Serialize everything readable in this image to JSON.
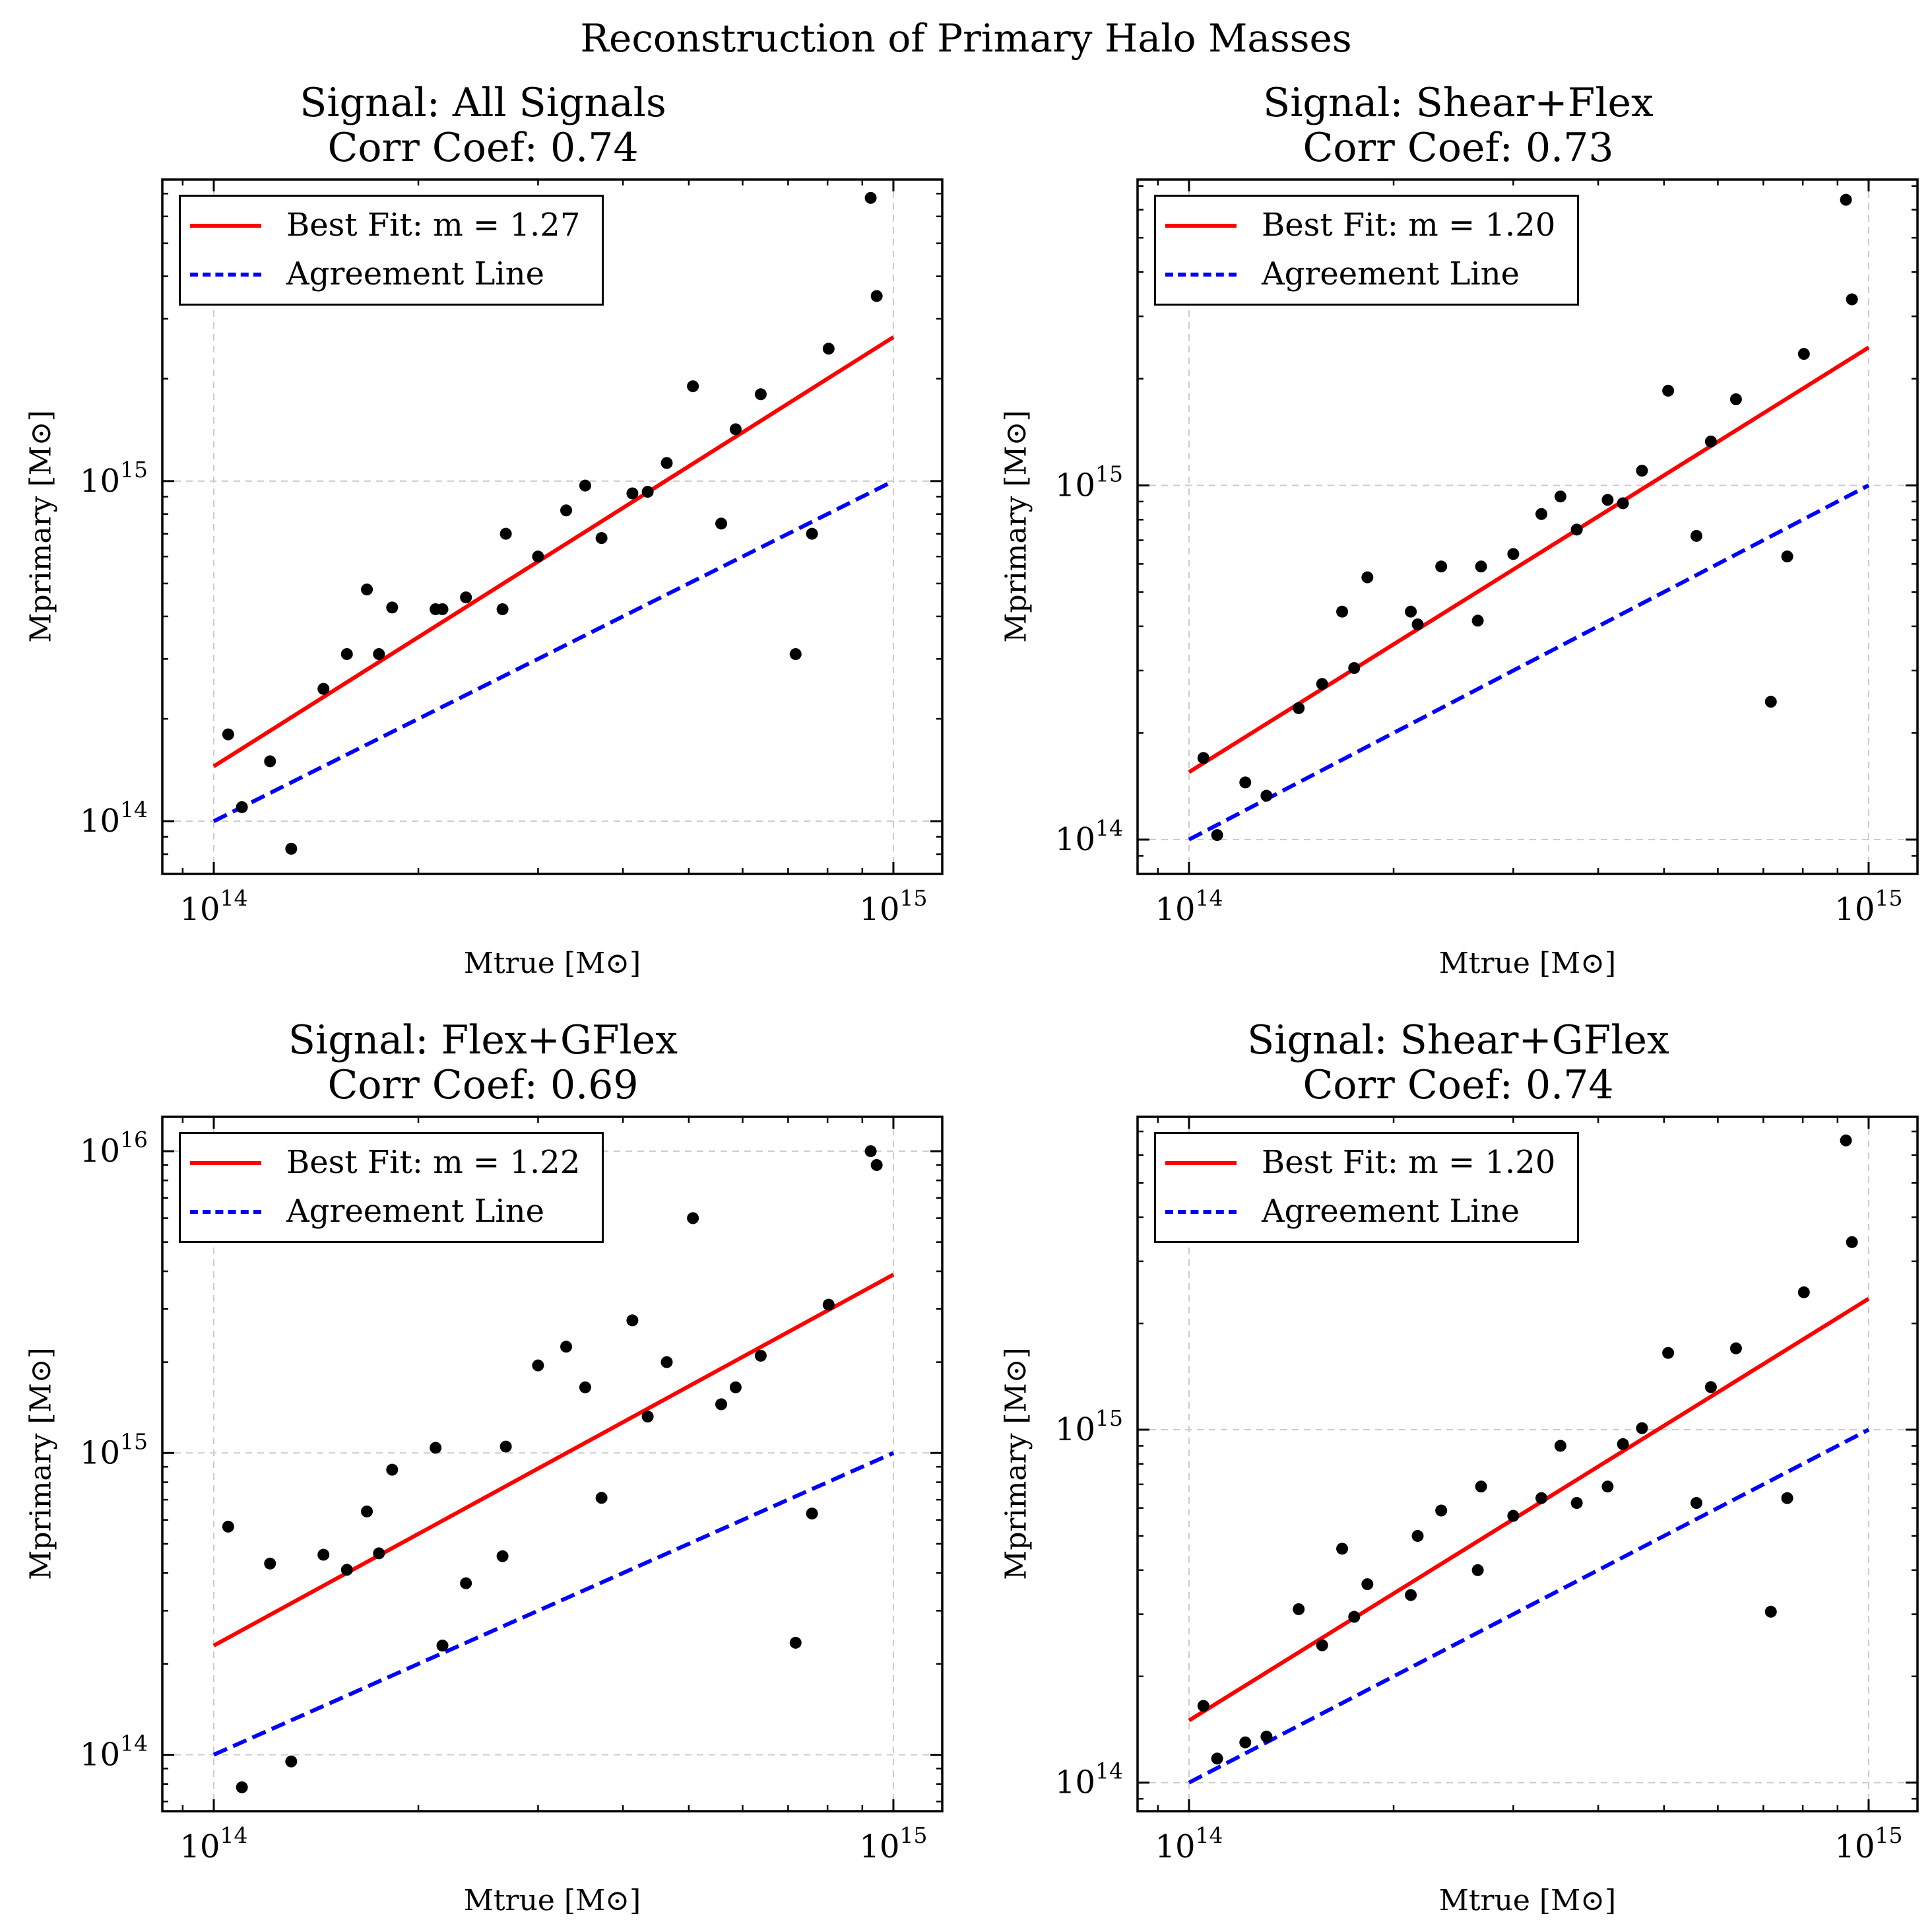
{
  "figure": {
    "title": "Reconstruction of Primary Halo Masses"
  },
  "axis_labels": {
    "xlabel": "Mtrue [M⊙]",
    "ylabel": "Mprimary [M⊙]"
  },
  "legend": {
    "best_fit_prefix": "Best Fit: m = ",
    "agreement": "Agreement Line"
  },
  "colors": {
    "best_fit": "#ff0000",
    "agreement": "#0000ff",
    "points": "#000000",
    "grid": "#cccccc"
  },
  "chart_data": [
    {
      "type": "scatter",
      "title": "Signal: All Signals",
      "subtitle": "Corr Coef: 0.74",
      "slope_label": "1.27",
      "xscale": "log",
      "yscale": "log",
      "xlim": [
        84000000000000.0,
        1180000000000000.0
      ],
      "ylim": [
        70000000000000.0,
        7700000000000000.0
      ],
      "xticks": [
        100000000000000.0,
        1000000000000000.0
      ],
      "yticks": [
        100000000000000.0,
        1000000000000000.0
      ],
      "grid": true,
      "legend_position": "upper-left",
      "best_fit": {
        "x": [
          100000000000000.0,
          1000000000000000.0
        ],
        "y": [
          145000000000000.0,
          2650000000000000.0
        ]
      },
      "agreement": {
        "x": [
          100000000000000.0,
          1000000000000000.0
        ],
        "y": [
          100000000000000.0,
          1000000000000000.0
        ]
      },
      "points": {
        "x": [
          105000000000000.0,
          110000000000000.0,
          121000000000000.0,
          130000000000000.0,
          145000000000000.0,
          157000000000000.0,
          168000000000000.0,
          175000000000000.0,
          183000000000000.0,
          212000000000000.0,
          217000000000000.0,
          235000000000000.0,
          266000000000000.0,
          269000000000000.0,
          300000000000000.0,
          330000000000000.0,
          352000000000000.0,
          372000000000000.0,
          413000000000000.0,
          435000000000000.0,
          464000000000000.0,
          507000000000000.0,
          558000000000000.0,
          586000000000000.0,
          638000000000000.0,
          718000000000000.0,
          759000000000000.0,
          803000000000000.0,
          926000000000000.0,
          945000000000000.0
        ],
        "y": [
          180000000000000.0,
          110000000000000.0,
          150000000000000.0,
          83000000000000.0,
          245000000000000.0,
          310000000000000.0,
          480000000000000.0,
          310000000000000.0,
          425000000000000.0,
          420000000000000.0,
          420000000000000.0,
          455000000000000.0,
          420000000000000.0,
          700000000000000.0,
          600000000000000.0,
          820000000000000.0,
          970000000000000.0,
          680000000000000.0,
          920000000000000.0,
          930000000000000.0,
          1130000000000000.0,
          1900000000000000.0,
          750000000000000.0,
          1420000000000000.0,
          1800000000000000.0,
          310000000000000.0,
          700000000000000.0,
          2450000000000000.0,
          6800000000000000.0,
          3500000000000000.0
        ]
      }
    },
    {
      "type": "scatter",
      "title": "Signal: Shear+Flex",
      "subtitle": "Corr Coef: 0.73",
      "slope_label": "1.20",
      "xscale": "log",
      "yscale": "log",
      "xlim": [
        84000000000000.0,
        1180000000000000.0
      ],
      "ylim": [
        80000000000000.0,
        7300000000000000.0
      ],
      "xticks": [
        100000000000000.0,
        1000000000000000.0
      ],
      "yticks": [
        100000000000000.0,
        1000000000000000.0
      ],
      "grid": true,
      "legend_position": "upper-left",
      "best_fit": {
        "x": [
          100000000000000.0,
          1000000000000000.0
        ],
        "y": [
          155000000000000.0,
          2450000000000000.0
        ]
      },
      "agreement": {
        "x": [
          100000000000000.0,
          1000000000000000.0
        ],
        "y": [
          100000000000000.0,
          1000000000000000.0
        ]
      },
      "points": {
        "x": [
          105000000000000.0,
          110000000000000.0,
          121000000000000.0,
          130000000000000.0,
          145000000000000.0,
          157000000000000.0,
          168000000000000.0,
          175000000000000.0,
          183000000000000.0,
          212000000000000.0,
          217000000000000.0,
          235000000000000.0,
          266000000000000.0,
          269000000000000.0,
          300000000000000.0,
          330000000000000.0,
          352000000000000.0,
          372000000000000.0,
          413000000000000.0,
          435000000000000.0,
          464000000000000.0,
          507000000000000.0,
          558000000000000.0,
          586000000000000.0,
          638000000000000.0,
          718000000000000.0,
          759000000000000.0,
          803000000000000.0,
          926000000000000.0,
          945000000000000.0
        ],
        "y": [
          170000000000000.0,
          103000000000000.0,
          145000000000000.0,
          133000000000000.0,
          235000000000000.0,
          275000000000000.0,
          440000000000000.0,
          305000000000000.0,
          550000000000000.0,
          440000000000000.0,
          405000000000000.0,
          590000000000000.0,
          415000000000000.0,
          590000000000000.0,
          640000000000000.0,
          830000000000000.0,
          930000000000000.0,
          750000000000000.0,
          910000000000000.0,
          890000000000000.0,
          1100000000000000.0,
          1850000000000000.0,
          720000000000000.0,
          1330000000000000.0,
          1750000000000000.0,
          245000000000000.0,
          630000000000000.0,
          2350000000000000.0,
          6400000000000000.0,
          3350000000000000.0
        ]
      }
    },
    {
      "type": "scatter",
      "title": "Signal: Flex+GFlex",
      "subtitle": "Corr Coef: 0.69",
      "slope_label": "1.22",
      "xscale": "log",
      "yscale": "log",
      "xlim": [
        84000000000000.0,
        1180000000000000.0
      ],
      "ylim": [
        65000000000000.0,
        1.3e+16
      ],
      "xticks": [
        100000000000000.0,
        1000000000000000.0
      ],
      "yticks": [
        100000000000000.0,
        1000000000000000.0,
        1e+16
      ],
      "grid": true,
      "legend_position": "upper-left",
      "best_fit": {
        "x": [
          100000000000000.0,
          1000000000000000.0
        ],
        "y": [
          230000000000000.0,
          3900000000000000.0
        ]
      },
      "agreement": {
        "x": [
          100000000000000.0,
          1000000000000000.0
        ],
        "y": [
          100000000000000.0,
          1000000000000000.0
        ]
      },
      "points": {
        "x": [
          105000000000000.0,
          110000000000000.0,
          121000000000000.0,
          130000000000000.0,
          145000000000000.0,
          157000000000000.0,
          168000000000000.0,
          175000000000000.0,
          183000000000000.0,
          212000000000000.0,
          217000000000000.0,
          235000000000000.0,
          266000000000000.0,
          269000000000000.0,
          300000000000000.0,
          330000000000000.0,
          352000000000000.0,
          372000000000000.0,
          413000000000000.0,
          435000000000000.0,
          464000000000000.0,
          507000000000000.0,
          558000000000000.0,
          586000000000000.0,
          638000000000000.0,
          718000000000000.0,
          759000000000000.0,
          803000000000000.0,
          926000000000000.0,
          945000000000000.0
        ],
        "y": [
          570000000000000.0,
          78000000000000.0,
          430000000000000.0,
          95000000000000.0,
          460000000000000.0,
          410000000000000.0,
          640000000000000.0,
          465000000000000.0,
          880000000000000.0,
          1040000000000000.0,
          230000000000000.0,
          370000000000000.0,
          455000000000000.0,
          1050000000000000.0,
          1950000000000000.0,
          2250000000000000.0,
          1650000000000000.0,
          710000000000000.0,
          2750000000000000.0,
          1320000000000000.0,
          2000000000000000.0,
          6000000000000000.0,
          1450000000000000.0,
          1650000000000000.0,
          2100000000000000.0,
          235000000000000.0,
          630000000000000.0,
          3100000000000000.0,
          1e+16,
          9000000000000000.0
        ]
      }
    },
    {
      "type": "scatter",
      "title": "Signal: Shear+GFlex",
      "subtitle": "Corr Coef: 0.74",
      "slope_label": "1.20",
      "xscale": "log",
      "yscale": "log",
      "xlim": [
        84000000000000.0,
        1180000000000000.0
      ],
      "ylim": [
        83000000000000.0,
        7700000000000000.0
      ],
      "xticks": [
        100000000000000.0,
        1000000000000000.0
      ],
      "yticks": [
        100000000000000.0,
        1000000000000000.0
      ],
      "grid": true,
      "legend_position": "upper-left",
      "best_fit": {
        "x": [
          100000000000000.0,
          1000000000000000.0
        ],
        "y": [
          150000000000000.0,
          2350000000000000.0
        ]
      },
      "agreement": {
        "x": [
          100000000000000.0,
          1000000000000000.0
        ],
        "y": [
          100000000000000.0,
          1000000000000000.0
        ]
      },
      "points": {
        "x": [
          105000000000000.0,
          110000000000000.0,
          121000000000000.0,
          130000000000000.0,
          145000000000000.0,
          157000000000000.0,
          168000000000000.0,
          175000000000000.0,
          183000000000000.0,
          212000000000000.0,
          217000000000000.0,
          235000000000000.0,
          266000000000000.0,
          269000000000000.0,
          300000000000000.0,
          330000000000000.0,
          352000000000000.0,
          372000000000000.0,
          413000000000000.0,
          435000000000000.0,
          464000000000000.0,
          507000000000000.0,
          558000000000000.0,
          586000000000000.0,
          638000000000000.0,
          718000000000000.0,
          759000000000000.0,
          803000000000000.0,
          926000000000000.0,
          945000000000000.0
        ],
        "y": [
          165000000000000.0,
          117000000000000.0,
          130000000000000.0,
          135000000000000.0,
          310000000000000.0,
          245000000000000.0,
          460000000000000.0,
          295000000000000.0,
          365000000000000.0,
          340000000000000.0,
          500000000000000.0,
          590000000000000.0,
          400000000000000.0,
          690000000000000.0,
          570000000000000.0,
          640000000000000.0,
          900000000000000.0,
          620000000000000.0,
          690000000000000.0,
          910000000000000.0,
          1010000000000000.0,
          1650000000000000.0,
          620000000000000.0,
          1320000000000000.0,
          1700000000000000.0,
          305000000000000.0,
          640000000000000.0,
          2450000000000000.0,
          6600000000000000.0,
          3400000000000000.0
        ]
      }
    }
  ]
}
